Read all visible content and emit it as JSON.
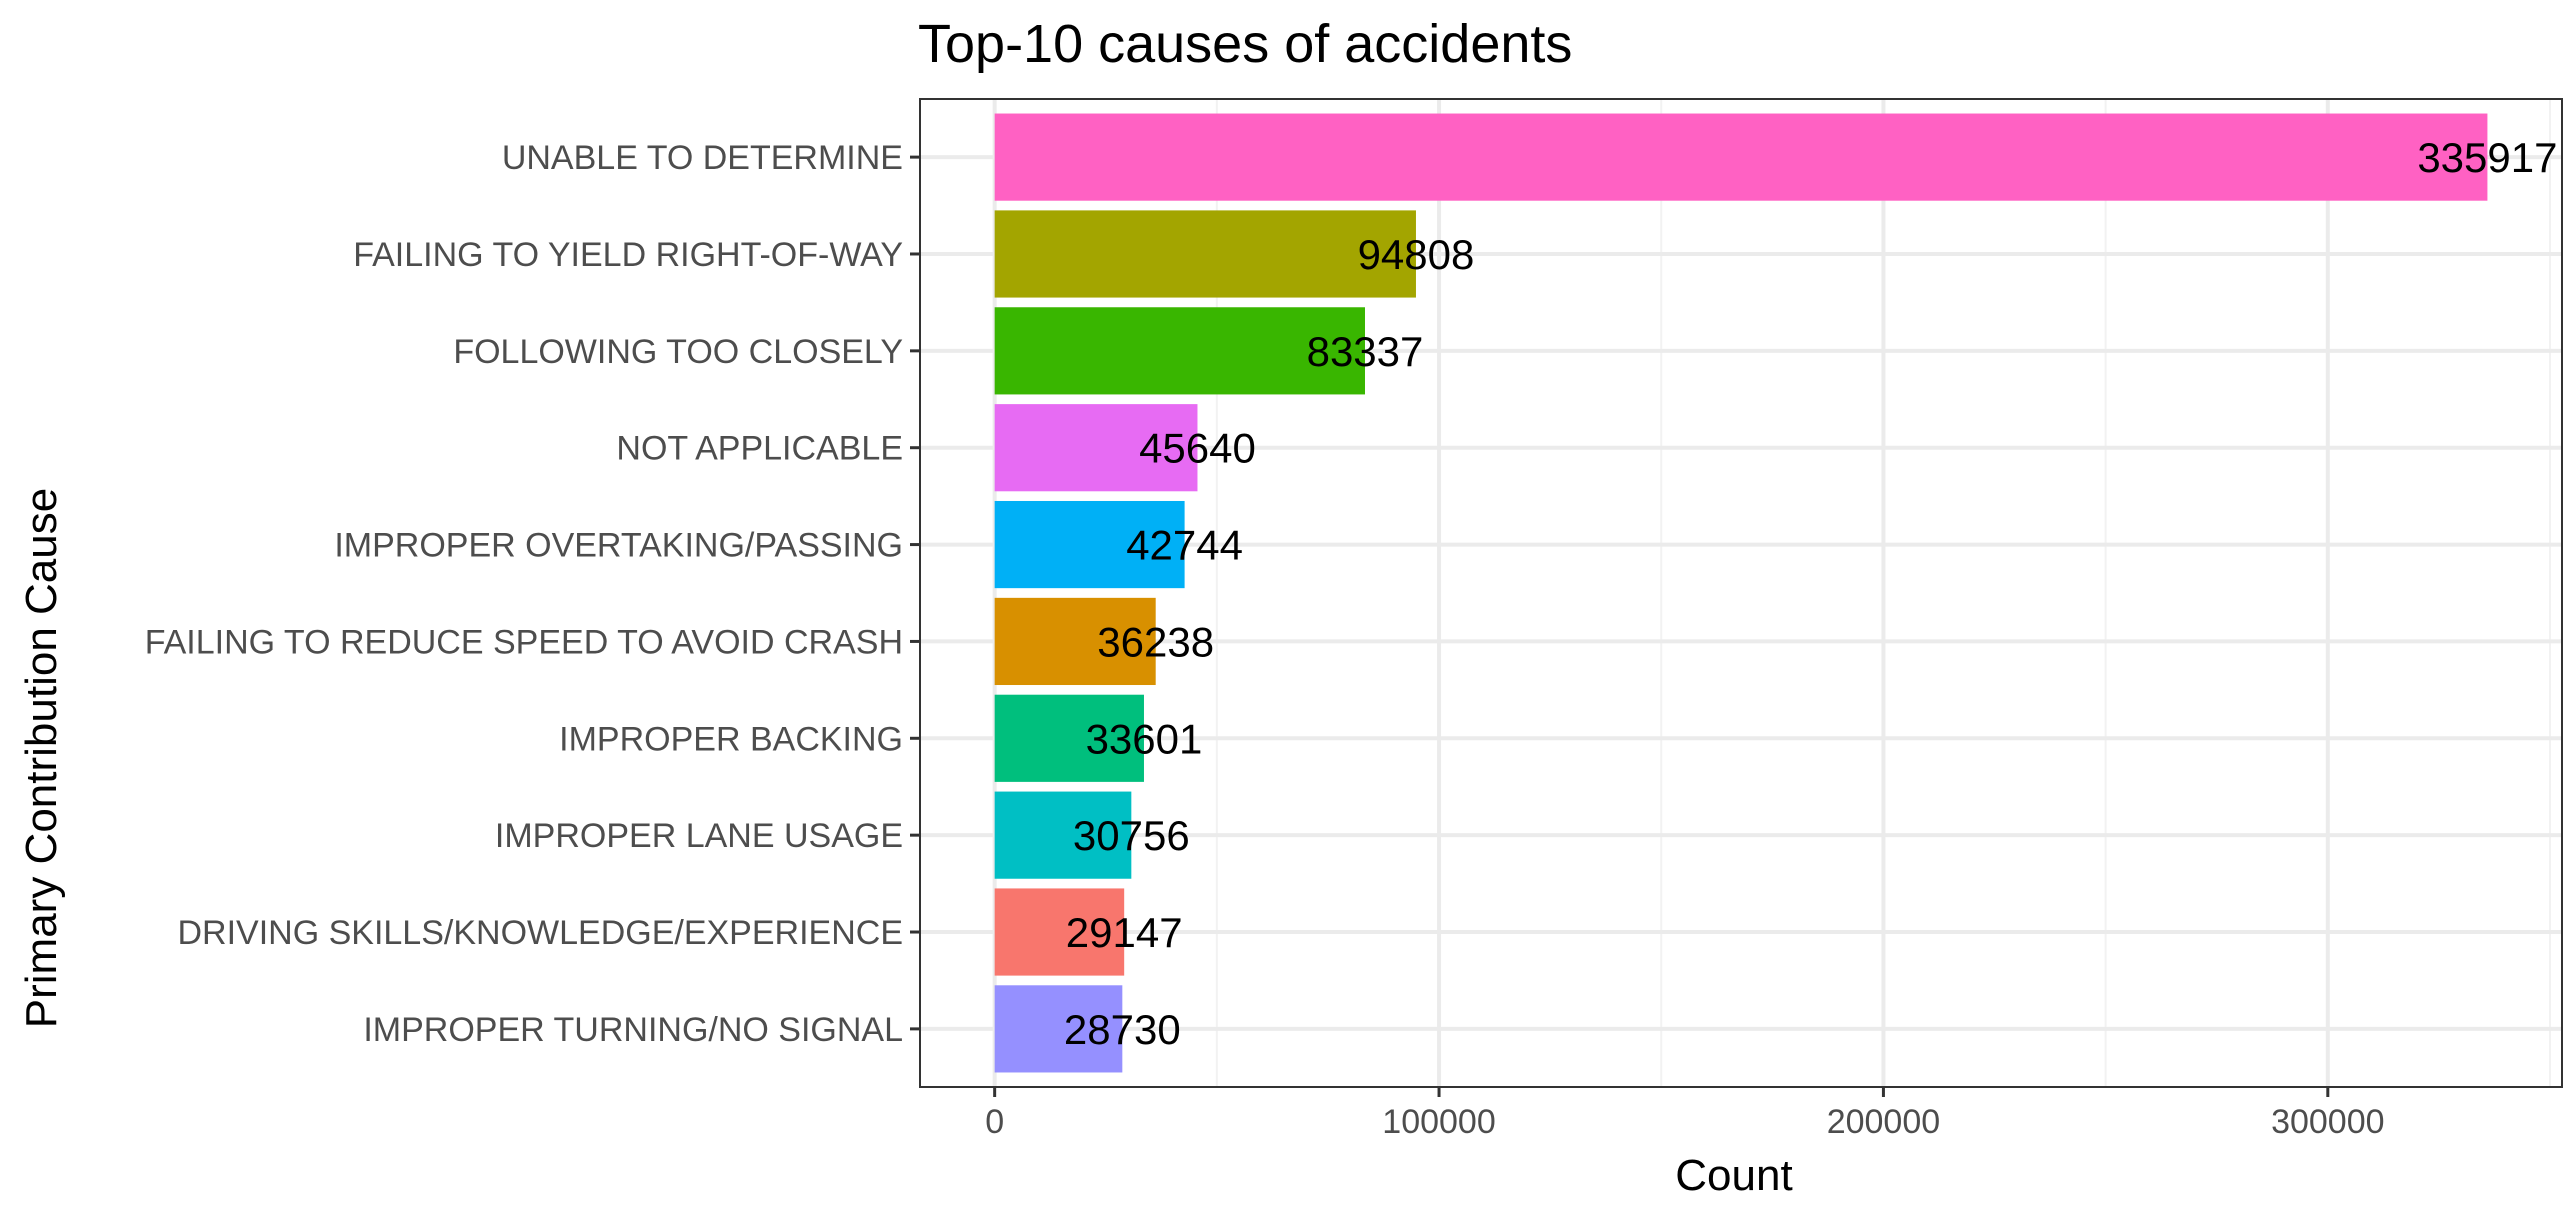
{
  "chart_data": {
    "type": "bar",
    "orientation": "horizontal",
    "title": "Top-10 causes of accidents",
    "xlabel": "Count",
    "ylabel": "Primary Contribution Cause",
    "xlim": [
      -16800,
      352700
    ],
    "xticks": [
      {
        "value": 0,
        "label": "0"
      },
      {
        "value": 100000,
        "label": "100000"
      },
      {
        "value": 200000,
        "label": "200000"
      },
      {
        "value": 300000,
        "label": "300000"
      }
    ],
    "grid": true,
    "legend": "none",
    "categories": [
      "UNABLE TO DETERMINE",
      "FAILING TO YIELD RIGHT-OF-WAY",
      "FOLLOWING TOO CLOSELY",
      "NOT APPLICABLE",
      "IMPROPER OVERTAKING/PASSING",
      "FAILING TO REDUCE SPEED TO AVOID CRASH",
      "IMPROPER BACKING",
      "IMPROPER LANE USAGE",
      "DRIVING SKILLS/KNOWLEDGE/EXPERIENCE",
      "IMPROPER TURNING/NO SIGNAL"
    ],
    "values": [
      335917,
      94808,
      83337,
      45640,
      42744,
      36238,
      33601,
      30756,
      29147,
      28730
    ],
    "value_labels": [
      "335917",
      "94808",
      "83337",
      "45640",
      "42744",
      "36238",
      "33601",
      "30756",
      "29147",
      "28730"
    ],
    "colors": [
      "#ff61c3",
      "#a3a500",
      "#39b600",
      "#e76bf3",
      "#00b0f6",
      "#d89000",
      "#00bf7d",
      "#00bfc4",
      "#f8766d",
      "#9590ff"
    ]
  }
}
